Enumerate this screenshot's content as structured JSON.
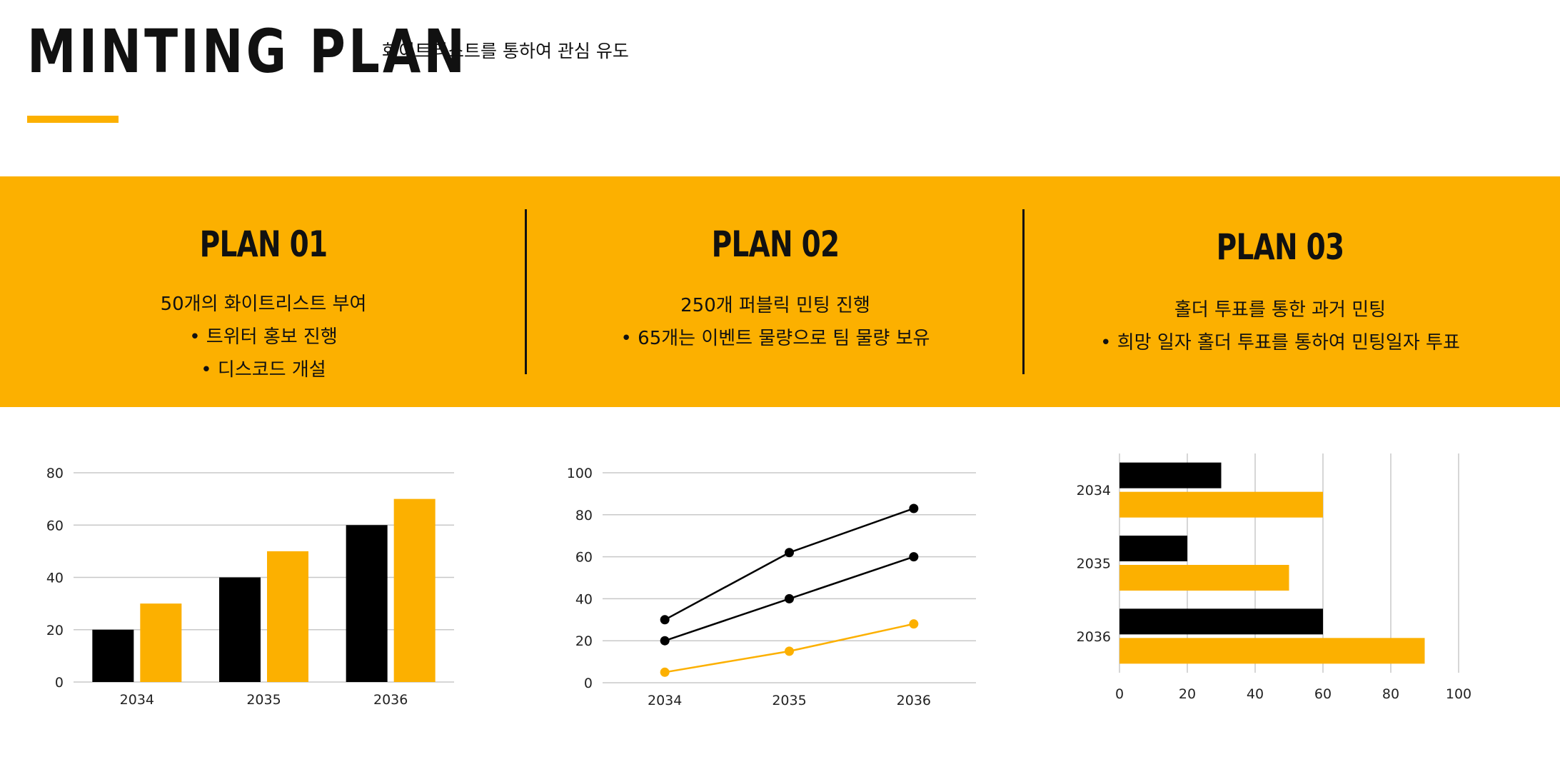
{
  "header": {
    "title": "MINTING PLAN",
    "subtitle": "화이트리스트를 통하여 관심 유도"
  },
  "colors": {
    "accent": "#fcb000",
    "dark": "#000000",
    "grid": "#c8c8c8"
  },
  "plans": [
    {
      "title": "PLAN 01",
      "lines": [
        "50개의 화이트리스트 부여",
        "• 트위터 홍보 진행",
        "• 디스코드 개설"
      ]
    },
    {
      "title": "PLAN 02",
      "lines": [
        "250개 퍼블릭 민팅 진행",
        "• 65개는 이벤트 물량으로 팀 물량 보유"
      ]
    },
    {
      "title": "PLAN 03",
      "lines": [
        "홀더 투표를 통한 과거 민팅",
        "• 희망 일자 홀더 투표를 통하여 민팅일자 투표"
      ]
    }
  ],
  "chart_data": [
    {
      "type": "bar",
      "categories": [
        "2034",
        "2035",
        "2036"
      ],
      "series": [
        {
          "values": [
            20,
            40,
            60
          ],
          "color": "#000000"
        },
        {
          "values": [
            30,
            50,
            70
          ],
          "color": "#fcb000"
        }
      ],
      "yticks": [
        "0",
        "20",
        "40",
        "60",
        "80"
      ],
      "ylim": [
        0,
        80
      ],
      "grid": true
    },
    {
      "type": "line",
      "categories": [
        "2034",
        "2035",
        "2036"
      ],
      "series": [
        {
          "values": [
            30,
            62,
            83
          ],
          "color": "#000000"
        },
        {
          "values": [
            20,
            40,
            60
          ],
          "color": "#000000"
        },
        {
          "values": [
            5,
            15,
            28
          ],
          "color": "#fcb000"
        }
      ],
      "yticks": [
        "0",
        "20",
        "40",
        "60",
        "80",
        "100"
      ],
      "ylim": [
        0,
        100
      ],
      "grid": true
    },
    {
      "type": "bar",
      "orientation": "horizontal",
      "categories": [
        "2034",
        "2035",
        "2036"
      ],
      "series": [
        {
          "values": [
            30,
            20,
            60
          ],
          "color": "#000000"
        },
        {
          "values": [
            60,
            50,
            90
          ],
          "color": "#fcb000"
        }
      ],
      "xticks": [
        "0",
        "20",
        "40",
        "60",
        "80",
        "100"
      ],
      "xlim": [
        0,
        100
      ],
      "grid": true
    }
  ]
}
